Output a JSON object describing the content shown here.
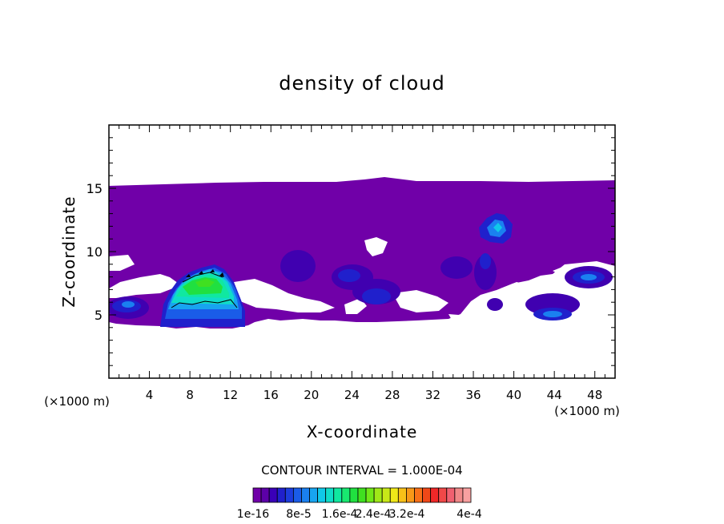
{
  "chart_data": {
    "type": "heatmap",
    "title": "density of cloud",
    "xlabel": "X-coordinate",
    "ylabel": "Z-coordinate",
    "xunit": "(×1000 m)",
    "xunit_right": "(×1000 m)",
    "xlim": [
      0,
      50
    ],
    "ylim": [
      0,
      20
    ],
    "x_ticks": [
      4,
      8,
      12,
      16,
      20,
      24,
      28,
      32,
      36,
      40,
      44,
      48
    ],
    "y_ticks": [
      5,
      10,
      15
    ],
    "contour_interval_text": "CONTOUR INTERVAL = 1.000E-04",
    "colorbar": {
      "labels": [
        "1e-16",
        "8e-5",
        "1.6e-4",
        "2.4e-4",
        "3.2e-4",
        "4e-4"
      ],
      "colors": [
        "#7000a8",
        "#5c00a8",
        "#3a00b8",
        "#2020cc",
        "#1c3cdc",
        "#1a5ce8",
        "#1a80f0",
        "#18a4f0",
        "#10c8e8",
        "#10dcc8",
        "#10e8a0",
        "#18e870",
        "#20e040",
        "#40e020",
        "#70e818",
        "#a0e818",
        "#c8e818",
        "#f0e818",
        "#f8c018",
        "#f89818",
        "#f87018",
        "#f04818",
        "#f02828",
        "#f04848",
        "#f06070",
        "#f08888",
        "#f8a0a0"
      ]
    },
    "regions": {
      "cloud_layer": {
        "x": [
          0,
          50
        ],
        "z": [
          4.5,
          15.8
        ]
      },
      "main_cell": {
        "x": [
          6,
          13
        ],
        "z": [
          4.3,
          8.8
        ],
        "peak_level": "2.4e-4"
      },
      "upper_cell": {
        "x": [
          36,
          39.5
        ],
        "z": [
          10.5,
          13.3
        ],
        "peak_level": "8e-5"
      },
      "right_cell": {
        "x": [
          44,
          49
        ],
        "z": [
          7.2,
          8.8
        ],
        "peak_level": "8e-5"
      }
    }
  }
}
